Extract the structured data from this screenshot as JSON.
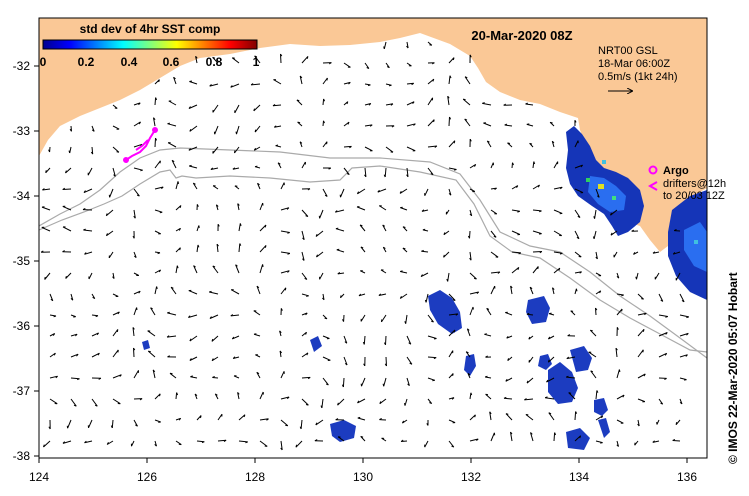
{
  "map": {
    "title": "20-Mar-2020 08Z",
    "credit": "© IMOS 22-Mar-2020 05:07 Hobart",
    "lon_ticks": [
      "124",
      "126",
      "128",
      "130",
      "132",
      "134",
      "136"
    ],
    "lat_ticks": [
      "-32",
      "-33",
      "-34",
      "-35",
      "-36",
      "-37",
      "-38"
    ],
    "lon_range": [
      124,
      136.5
    ],
    "lat_range": [
      -38.1,
      -31.4
    ],
    "colors": {
      "land": "#fac896",
      "sea": "#ffffff",
      "arrows": "#000000",
      "drifter": "#ff00ff",
      "isobath": "#aaaaaa"
    }
  },
  "colorbar": {
    "label": "std dev of 4hr SST comp",
    "ticks": [
      "0",
      "0.2",
      "0.4",
      "0.6",
      "0.8",
      "1"
    ],
    "range": [
      0,
      1
    ],
    "colormap": "jet"
  },
  "current_info": {
    "line1": "NRT00 GSL",
    "line2": "18-Mar 06:00Z",
    "line3": "0.5m/s (1kt 24h)"
  },
  "argo": {
    "label": "Argo"
  },
  "drifters": {
    "line1": "drifters@12h",
    "line2": "to 20/03 12Z"
  }
}
